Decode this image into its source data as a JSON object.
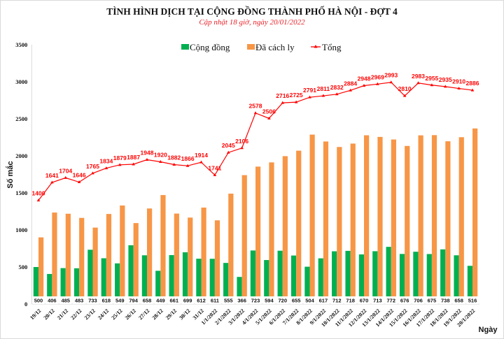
{
  "chart_data": {
    "type": "bar+line",
    "title": "TÌNH HÌNH DỊCH TẠI CỘNG ĐỒNG THÀNH PHỐ HÀ NỘI - ĐỢT 4",
    "subtitle": "Cập nhật 18 giờ, ngày 20/01/2022",
    "xlabel": "Ngày",
    "ylabel": "Số mắc",
    "ylim": [
      0,
      3500
    ],
    "yticks": [
      0,
      500,
      1000,
      1500,
      2000,
      2500,
      3000,
      3500
    ],
    "grid": false,
    "legend_position": "top",
    "categories": [
      "19/12",
      "20/12",
      "21/12",
      "22/12",
      "23/12",
      "24/12",
      "25/12",
      "26/12",
      "27/12",
      "28/12",
      "29/12",
      "30/12",
      "31/12",
      "1/1/2022",
      "2/1/2022",
      "3/1/2022",
      "4/1/2022",
      "5/1/2022",
      "6/1/2022",
      "7/1/2022",
      "8/1/2022",
      "9/1/2022",
      "10/1/2022",
      "11/1/2022",
      "12/1/2022",
      "13/1/2022",
      "14/1/2022",
      "15/1/2022",
      "16/1/2022",
      "17/1/2022",
      "18/1/2022",
      "19/1/2022",
      "20/1/2022"
    ],
    "series": [
      {
        "name": "Cộng đồng",
        "type": "bar",
        "color": "#00b050",
        "values": [
          500,
          406,
          485,
          483,
          733,
          618,
          549,
          794,
          658,
          449,
          661,
          699,
          612,
          611,
          555,
          366,
          723,
          594,
          720,
          655,
          504,
          617,
          712,
          718,
          670,
          713,
          772,
          676,
          706,
          675,
          738,
          658,
          516
        ]
      },
      {
        "name": "Đã cách ly",
        "type": "bar",
        "color": "#f79646",
        "values": [
          900,
          1235,
          1219,
          1163,
          1032,
          1216,
          1330,
          1093,
          1290,
          1471,
          1221,
          1167,
          1302,
          1130,
          1490,
          1740,
          1855,
          1912,
          1996,
          2070,
          2287,
          2194,
          2120,
          2166,
          2278,
          2256,
          2221,
          2134,
          2277,
          2280,
          2197,
          2252,
          2370
        ]
      },
      {
        "name": "Tổng",
        "type": "line",
        "color": "#ff0000",
        "values": [
          1400,
          1641,
          1704,
          1646,
          1765,
          1834,
          1879,
          1887,
          1948,
          1920,
          1882,
          1866,
          1914,
          1741,
          2045,
          2106,
          2578,
          2506,
          2716,
          2725,
          2791,
          2811,
          2832,
          2884,
          2948,
          2969,
          2993,
          2810,
          2983,
          2955,
          2935,
          2910,
          2886
        ]
      }
    ]
  }
}
